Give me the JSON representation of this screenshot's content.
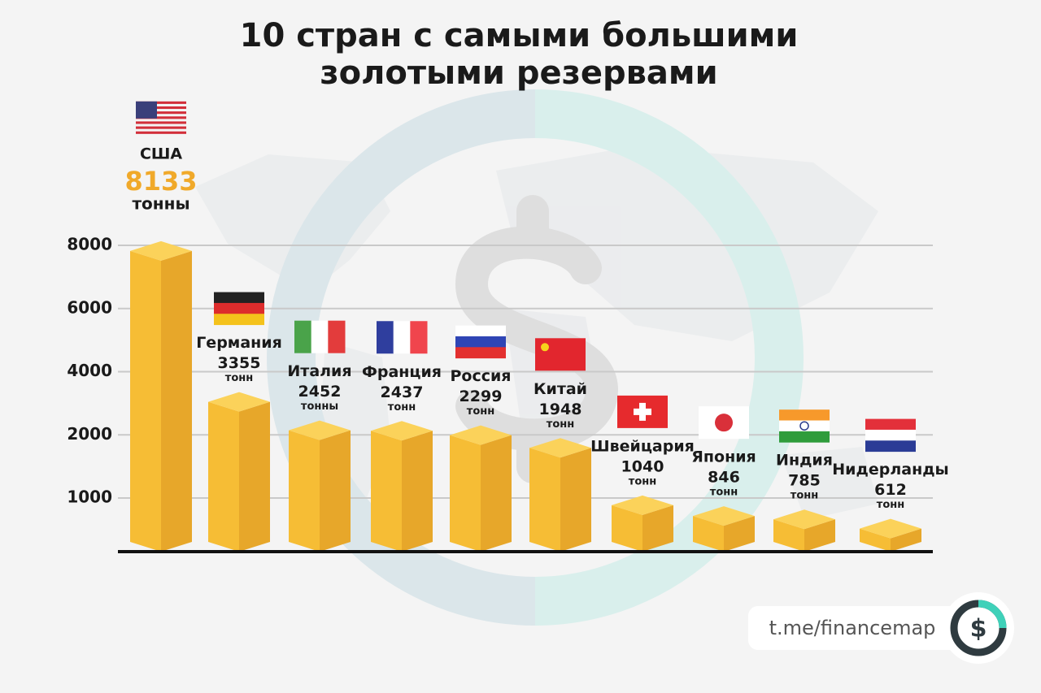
{
  "chart_data": {
    "type": "bar",
    "title": [
      "10 стран с самыми большими",
      "золотыми резервами"
    ],
    "categories": [
      "США",
      "Германия",
      "Италия",
      "Франция",
      "Россия",
      "Китай",
      "Швейцария",
      "Япония",
      "Индия",
      "Нидерланды"
    ],
    "values": [
      8133,
      3355,
      2452,
      2437,
      2299,
      1948,
      1040,
      846,
      785,
      612
    ],
    "units": [
      "тонны",
      "тонн",
      "тонны",
      "тонн",
      "тонн",
      "тонн",
      "тонн",
      "тонн",
      "тонн",
      "тонн"
    ],
    "color": "#f6bd35",
    "ylim": [
      0,
      8000
    ],
    "yticks": [
      1000,
      2000,
      4000,
      6000,
      8000
    ],
    "grid": true,
    "credit": "t.me/financemap",
    "logo_text": "$"
  }
}
